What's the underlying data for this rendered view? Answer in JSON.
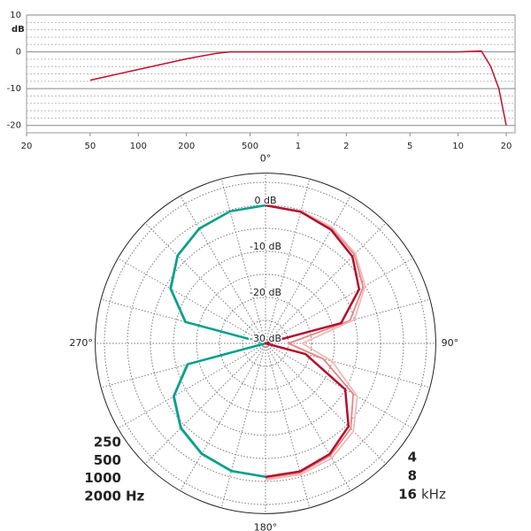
{
  "chart_data": [
    {
      "type": "line",
      "y_label": "dB",
      "xscale": "log",
      "color": "#c0102e",
      "x": [
        50,
        100,
        200,
        300,
        375,
        1000,
        5000,
        10000,
        14000,
        16000,
        18000,
        20000
      ],
      "values": [
        -7.7,
        -4.8,
        -1.9,
        -0.5,
        0,
        0,
        0,
        0,
        0.2,
        -4,
        -10,
        -20
      ],
      "xlim": [
        20,
        20000
      ],
      "xticks": [
        20,
        50,
        100,
        200,
        500,
        {
          "value": 1000,
          "label": "1"
        },
        {
          "value": 2000,
          "label": "2"
        },
        {
          "value": 5000,
          "label": "5"
        },
        {
          "value": 10000,
          "label": "10"
        },
        {
          "value": 20000,
          "label": "20"
        }
      ],
      "ylim": [
        -22,
        10
      ],
      "yticks": [
        10,
        0,
        -10,
        -20
      ],
      "yminor": [
        8,
        6,
        4,
        2,
        -2,
        -4,
        -6,
        -8,
        -12,
        -14,
        -16,
        -18
      ],
      "grid": true
    },
    {
      "type": "polar",
      "rlim": [
        -30,
        7
      ],
      "rticks": [
        {
          "value": 0,
          "label": "0 dB"
        },
        {
          "value": -10,
          "label": "-10 dB"
        },
        {
          "value": -20,
          "label": "-20 dB"
        },
        {
          "value": -30,
          "label": "-30 dB"
        }
      ],
      "rminor": [
        5,
        -5,
        -15,
        -25
      ],
      "thetaticks": [
        0,
        15,
        30,
        45,
        60,
        75,
        90,
        105,
        120,
        135,
        150,
        165,
        180,
        195,
        210,
        225,
        240,
        255,
        270,
        285,
        300,
        315,
        330,
        345
      ],
      "angle_labels": [
        {
          "value": 0,
          "label": "0°"
        },
        {
          "value": 90,
          "label": "90°"
        },
        {
          "value": 180,
          "label": "180°"
        },
        {
          "value": 270,
          "label": "270°"
        }
      ],
      "left_unit": "Hz",
      "right_unit": "kHz",
      "series": [
        {
          "name": "250",
          "color": "#8d9cc6",
          "side": "left",
          "theta": [
            180,
            195,
            210,
            225,
            240,
            255,
            270,
            285,
            300,
            315,
            330,
            345,
            360
          ],
          "values": [
            -1.1,
            -1.4,
            -2.4,
            -4.1,
            -7.1,
            -12.6,
            -30,
            -12.1,
            -6.3,
            -3.1,
            -1.3,
            -0.3,
            0
          ]
        },
        {
          "name": "500",
          "color": "#1a3a86",
          "side": "left",
          "theta": [
            180,
            195,
            210,
            225,
            240,
            255,
            270,
            285,
            300,
            315,
            330,
            345,
            360
          ],
          "values": [
            -1,
            -1.3,
            -2.3,
            -4,
            -7,
            -12.5,
            -30,
            -12,
            -6.2,
            -3,
            -1.2,
            -0.3,
            0
          ]
        },
        {
          "name": "1000",
          "color": "#98d6c6",
          "side": "left",
          "theta": [
            180,
            195,
            210,
            225,
            240,
            255,
            270,
            285,
            300,
            315,
            330,
            345,
            360
          ],
          "values": [
            -0.9,
            -1.2,
            -2.1,
            -3.8,
            -6.8,
            -12.2,
            -30,
            -11.8,
            -6,
            -2.9,
            -1.1,
            -0.3,
            0
          ]
        },
        {
          "name": "2000",
          "color": "#00a08a",
          "side": "left",
          "theta": [
            180,
            195,
            210,
            225,
            240,
            255,
            270,
            285,
            300,
            315,
            330,
            345,
            360
          ],
          "values": [
            -1,
            -1.3,
            -2.3,
            -4,
            -7,
            -12.5,
            -30,
            -12,
            -6.2,
            -3,
            -1.2,
            -0.3,
            0
          ]
        },
        {
          "name": "4",
          "color": "#e58585",
          "side": "right",
          "theta": [
            0,
            15,
            30,
            45,
            60,
            75,
            90,
            105,
            120,
            135,
            150,
            165,
            180
          ],
          "values": [
            0,
            -0.3,
            -1.1,
            -2.7,
            -5.5,
            -11,
            -25,
            -17,
            -8,
            -3.8,
            -1.8,
            -0.9,
            -0.7
          ]
        },
        {
          "name": "8",
          "color": "#f1b9b9",
          "side": "right",
          "theta": [
            0,
            15,
            30,
            45,
            60,
            75,
            90,
            105,
            120,
            135,
            150,
            165,
            180
          ],
          "values": [
            0,
            -0.2,
            -0.9,
            -2.4,
            -5,
            -10,
            -22,
            -15,
            -7,
            -3,
            -1.2,
            -0.5,
            -0.3
          ]
        },
        {
          "name": "16",
          "color": "#b3102c",
          "side": "right",
          "theta": [
            0,
            15,
            30,
            45,
            60,
            75,
            90,
            105,
            120,
            135,
            150,
            165,
            180
          ],
          "values": [
            0,
            -0.4,
            -1.5,
            -3.3,
            -6.5,
            -13,
            -30,
            -21,
            -10,
            -4.5,
            -2.2,
            -1.2,
            -1
          ]
        }
      ]
    }
  ]
}
